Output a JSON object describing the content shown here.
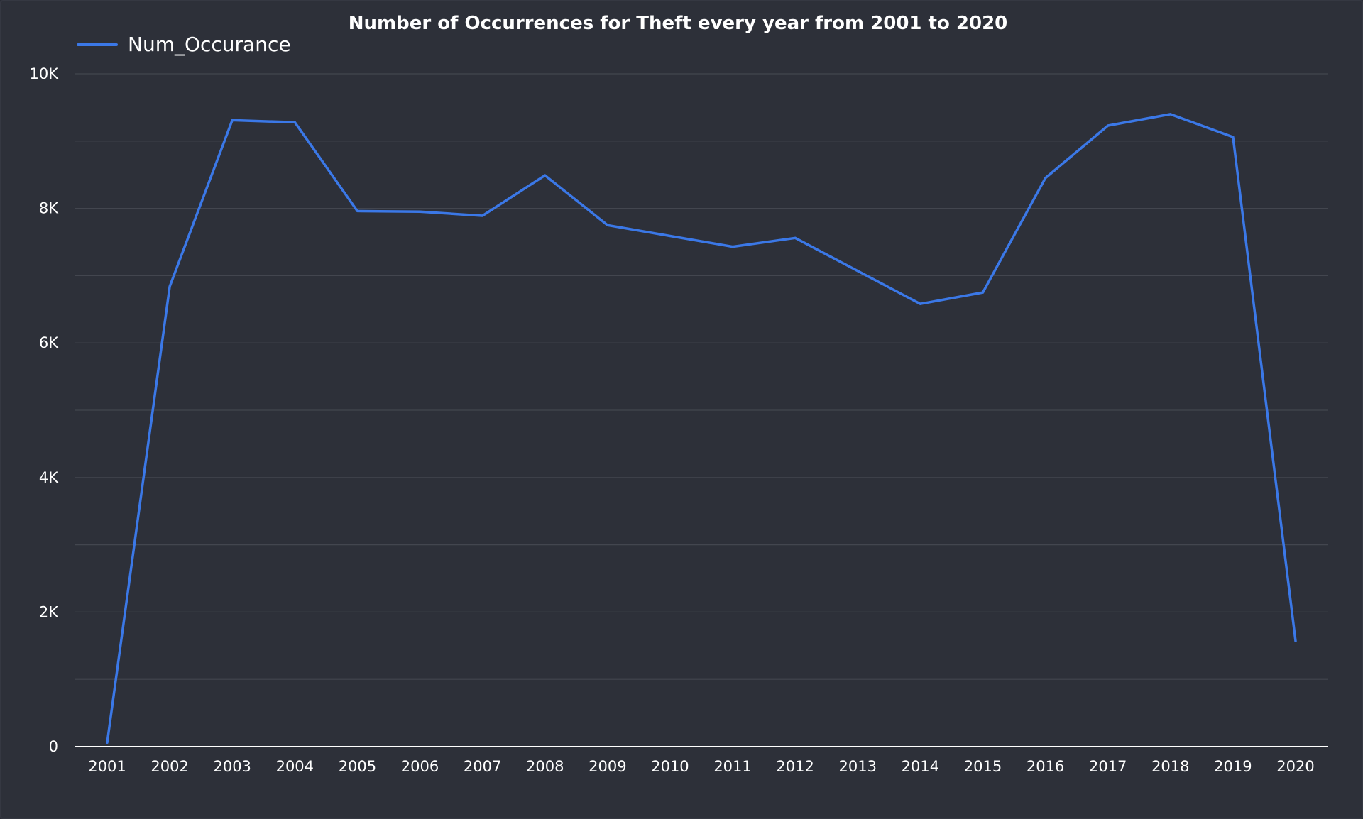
{
  "chart_data": {
    "type": "line",
    "title": "Number of Occurrences for Theft every year from 2001 to 2020",
    "xlabel": "",
    "ylabel": "",
    "categories": [
      "2001",
      "2002",
      "2003",
      "2004",
      "2005",
      "2006",
      "2007",
      "2008",
      "2009",
      "2010",
      "2011",
      "2012",
      "2013",
      "2014",
      "2015",
      "2016",
      "2017",
      "2018",
      "2019",
      "2020"
    ],
    "series": [
      {
        "name": "Num_Occurance",
        "color": "#3b78e7",
        "values": [
          60,
          6840,
          9310,
          9280,
          7960,
          7950,
          7890,
          8490,
          7750,
          7590,
          7430,
          7560,
          7070,
          6580,
          6750,
          8450,
          9230,
          9400,
          9060,
          1570
        ]
      }
    ],
    "ylim": [
      0,
      10000
    ],
    "yticks": [
      {
        "value": 0,
        "label": "0"
      },
      {
        "value": 2000,
        "label": "2K"
      },
      {
        "value": 4000,
        "label": "4K"
      },
      {
        "value": 6000,
        "label": "6K"
      },
      {
        "value": 8000,
        "label": "8K"
      },
      {
        "value": 10000,
        "label": "10K"
      }
    ],
    "grid": true,
    "legend_position": "top-left",
    "colors": {
      "background": "#2d3039",
      "gridline": "#43464f",
      "axis": "#ffffff",
      "text": "#ffffff"
    }
  }
}
